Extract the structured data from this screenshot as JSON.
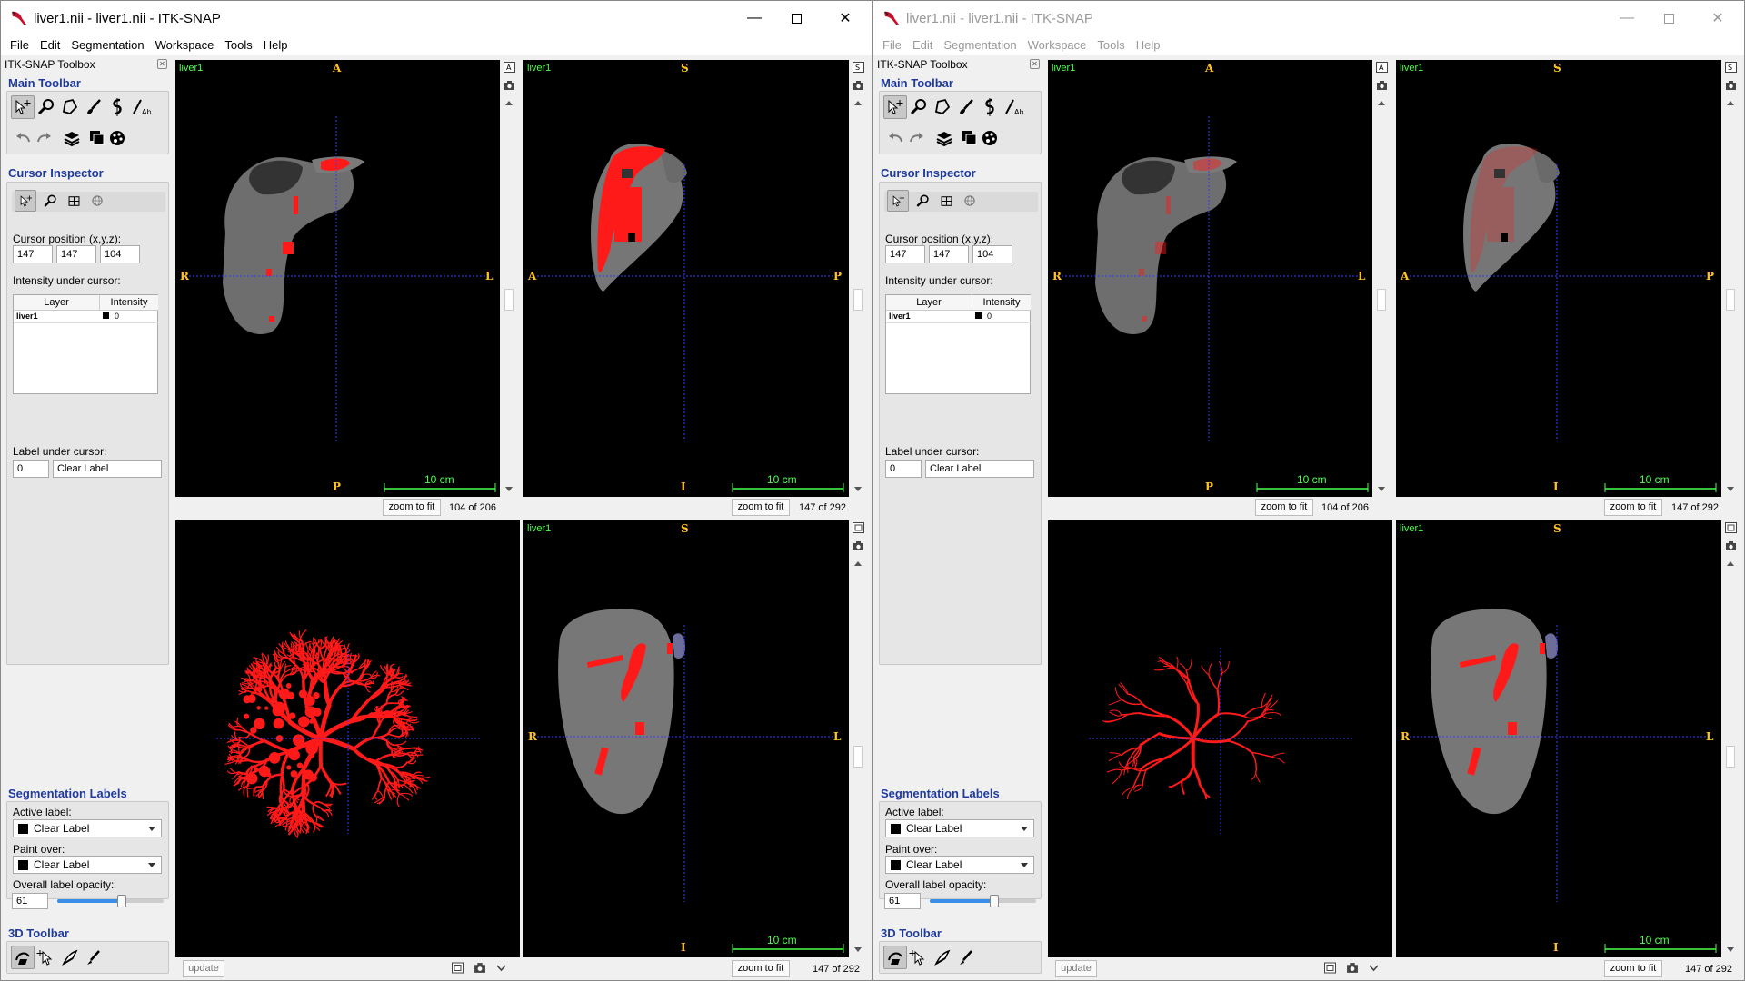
{
  "windows": [
    {
      "title": "liver1.nii - liver1.nii - ITK-SNAP",
      "menu": [
        "File",
        "Edit",
        "Segmentation",
        "Workspace",
        "Tools",
        "Help"
      ],
      "toolbox": {
        "header": "ITK-SNAP Toolbox",
        "main_toolbar": "Main Toolbar",
        "cursor_inspector": "Cursor Inspector",
        "cursor_position_label": "Cursor position (x,y,z):",
        "cursor_x": "147",
        "cursor_y": "147",
        "cursor_z": "104",
        "intensity_label": "Intensity under cursor:",
        "col_layer": "Layer",
        "col_intensity": "Intensity",
        "row_layer": "liver1",
        "row_intensity": "0",
        "label_under_cursor": "Label under cursor:",
        "label_value": "0",
        "label_name": "Clear Label",
        "seg_labels": "Segmentation Labels",
        "active_label_caption": "Active label:",
        "active_label": "Clear Label",
        "paint_over_caption": "Paint over:",
        "paint_over": "Clear Label",
        "opacity_caption": "Overall label opacity:",
        "opacity_value": "61",
        "opacity_fraction": 0.61,
        "toolbar3d": "3D Toolbar"
      },
      "views": {
        "axial": {
          "layer": "liver1",
          "top": "A",
          "bottom": "P",
          "left": "R",
          "right": "L",
          "scale": "10 cm",
          "zoom": "zoom to fit",
          "slice": "104 of 206"
        },
        "sagittal": {
          "layer": "liver1",
          "top": "S",
          "bottom": "I",
          "left": "A",
          "right": "P",
          "scale": "10 cm",
          "zoom": "zoom to fit",
          "slice": "147 of 292"
        },
        "render3d": {
          "update": "update"
        },
        "coronal": {
          "layer": "liver1",
          "top": "S",
          "bottom": "I",
          "left": "R",
          "right": "L",
          "scale": "10 cm",
          "zoom": "zoom to fit",
          "slice": "147 of 292"
        }
      }
    },
    {
      "title": "liver1.nii - liver1.nii - ITK-SNAP",
      "menu": [
        "File",
        "Edit",
        "Segmentation",
        "Workspace",
        "Tools",
        "Help"
      ],
      "toolbox": {
        "header": "ITK-SNAP Toolbox",
        "main_toolbar": "Main Toolbar",
        "cursor_inspector": "Cursor Inspector",
        "cursor_position_label": "Cursor position (x,y,z):",
        "cursor_x": "147",
        "cursor_y": "147",
        "cursor_z": "104",
        "intensity_label": "Intensity under cursor:",
        "col_layer": "Layer",
        "col_intensity": "Intensity",
        "row_layer": "liver1",
        "row_intensity": "0",
        "label_under_cursor": "Label under cursor:",
        "label_value": "0",
        "label_name": "Clear Label",
        "seg_labels": "Segmentation Labels",
        "active_label_caption": "Active label:",
        "active_label": "Clear Label",
        "paint_over_caption": "Paint over:",
        "paint_over": "Clear Label",
        "opacity_caption": "Overall label opacity:",
        "opacity_value": "61",
        "opacity_fraction": 0.61,
        "toolbar3d": "3D Toolbar"
      },
      "views": {
        "axial": {
          "layer": "liver1",
          "top": "A",
          "bottom": "P",
          "left": "R",
          "right": "L",
          "scale": "10 cm",
          "zoom": "zoom to fit",
          "slice": "104 of 206"
        },
        "sagittal": {
          "layer": "liver1",
          "top": "S",
          "bottom": "I",
          "left": "A",
          "right": "P",
          "scale": "10 cm",
          "zoom": "zoom to fit",
          "slice": "147 of 292"
        },
        "render3d": {
          "update": "update"
        },
        "coronal": {
          "layer": "liver1",
          "top": "S",
          "bottom": "I",
          "left": "R",
          "right": "L",
          "scale": "10 cm",
          "zoom": "zoom to fit",
          "slice": "147 of 292"
        }
      }
    }
  ],
  "colors": {
    "segmentation": "#ff1a1a",
    "crosshair": "#3b3bff",
    "overlay_text": "#4cff4c",
    "orientation": "#ffc125",
    "section_title": "#1f3b9b"
  }
}
